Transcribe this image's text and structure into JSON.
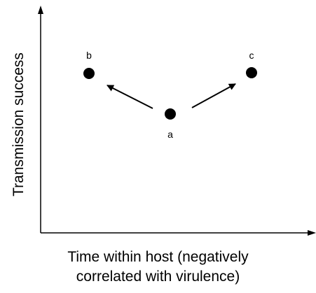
{
  "chart_data": {
    "type": "scatter",
    "xlabel": [
      "Time within host (negatively",
      "correlated with virulence)"
    ],
    "ylabel": "Transmission success",
    "points": [
      {
        "label": "a"
      },
      {
        "label": "b"
      },
      {
        "label": "c"
      }
    ],
    "arrows": [
      {
        "from": "a",
        "to": "b"
      },
      {
        "from": "a",
        "to": "c"
      }
    ],
    "grid": false,
    "legend": "none"
  },
  "colors": {
    "ink": "#000000",
    "background": "#ffffff"
  }
}
